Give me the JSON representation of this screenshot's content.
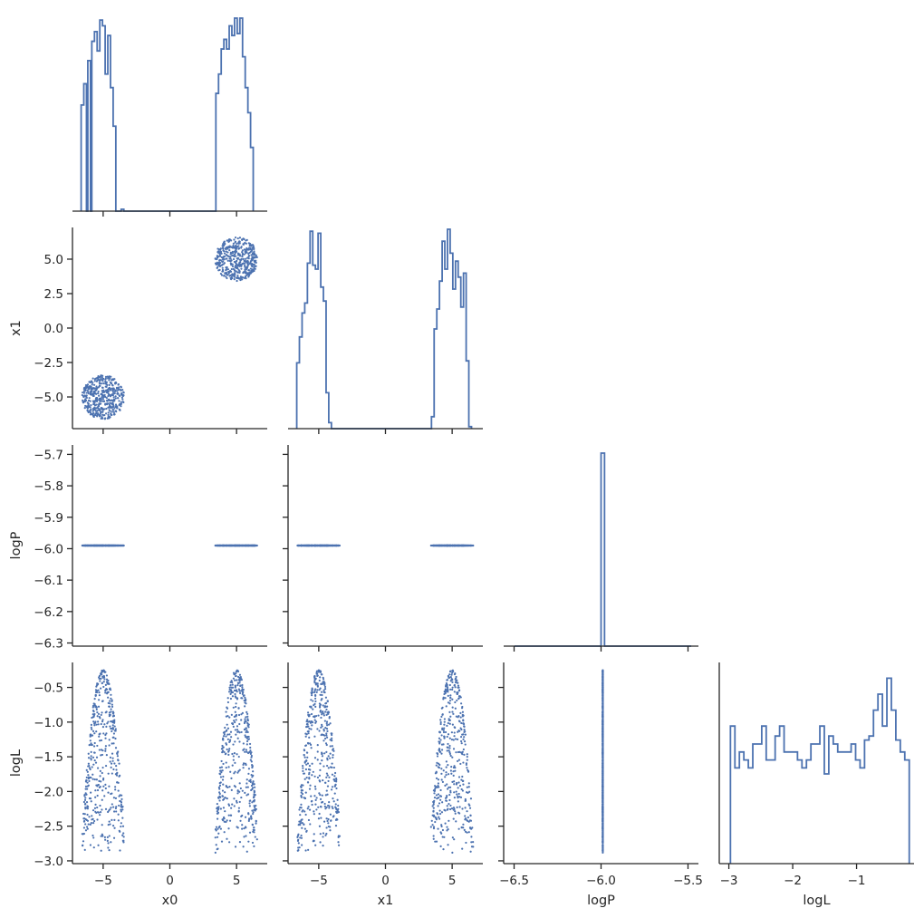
{
  "figure": {
    "type": "corner-plot",
    "color": "#4c72b0",
    "background": "#ffffff",
    "grid": false,
    "legend": false
  },
  "chart_data": {
    "type": "scatter",
    "variables": [
      "x0",
      "x1",
      "logP",
      "logL"
    ],
    "ranges": {
      "x0": [
        -7.3,
        7.3
      ],
      "x1": [
        -7.3,
        7.3
      ],
      "logP": [
        -6.31,
        -5.67
      ],
      "logL": [
        -3.04,
        -0.14
      ]
    },
    "ticks": {
      "x0": [
        -5,
        0,
        5
      ],
      "x1": [
        -5,
        0,
        5
      ],
      "x1_y": [
        -5.0,
        -2.5,
        0.0,
        2.5,
        5.0
      ],
      "logP_x": [
        -6.5,
        -6.0,
        -5.5
      ],
      "logP_y": [
        -6.3,
        -6.2,
        -6.1,
        -6.0,
        -5.9,
        -5.8,
        -5.7
      ],
      "logL_x": [
        -3,
        -2,
        -1
      ],
      "logL_y": [
        -3.0,
        -2.5,
        -2.0,
        -1.5,
        -1.0,
        -0.5
      ]
    },
    "tick_labels": {
      "x0": [
        "−5",
        "0",
        "5"
      ],
      "x1": [
        "−5",
        "0",
        "5"
      ],
      "x1_y": [
        "−5.0",
        "−2.5",
        "0.0",
        "2.5",
        "5.0"
      ],
      "logP_x": [
        "−6.5",
        "−6.0",
        "−5.5"
      ],
      "logP_y": [
        "−6.3",
        "−6.2",
        "−6.1",
        "−6.0",
        "−5.9",
        "−5.8",
        "−5.7"
      ],
      "logL_x": [
        "−3",
        "−2",
        "−1"
      ],
      "logL_y": [
        "−3.0",
        "−2.5",
        "−2.0",
        "−1.5",
        "−1.0",
        "−0.5"
      ]
    },
    "axis_labels": {
      "x0": "x0",
      "x1": "x1",
      "logP": "logP",
      "logL": "logL"
    },
    "histograms": {
      "x0": {
        "x_start": -6.6,
        "bin_width": 0.22,
        "counts": [
          30,
          35,
          35,
          42,
          50,
          48,
          52,
          52,
          40,
          50,
          45,
          30,
          0,
          0,
          0,
          0,
          0,
          0,
          0,
          0,
          0,
          0,
          0,
          0,
          0,
          0,
          0,
          0,
          0,
          0,
          0,
          0,
          0,
          0,
          0,
          0,
          0,
          0,
          0,
          0,
          0,
          0,
          0,
          0,
          0,
          0,
          0,
          0,
          0,
          0,
          0,
          0,
          0,
          0,
          0,
          0,
          0,
          0,
          0,
          0,
          0,
          0,
          0,
          0,
          0,
          0,
          0,
          0,
          0,
          0,
          0,
          0,
          0,
          0,
          0,
          0,
          0,
          0,
          0,
          0
        ]
      },
      "x0_bins": [
        {
          "x": -6.55,
          "h": 0.55
        },
        {
          "x": -6.35,
          "h": 0.66
        },
        {
          "x": -6.05,
          "h": 0.78
        },
        {
          "x": -5.75,
          "h": 0.88
        },
        {
          "x": -5.55,
          "h": 0.93
        },
        {
          "x": -5.35,
          "h": 0.83
        },
        {
          "x": -5.15,
          "h": 0.99
        },
        {
          "x": -4.95,
          "h": 0.96
        },
        {
          "x": -4.75,
          "h": 0.71
        },
        {
          "x": -4.55,
          "h": 0.91
        },
        {
          "x": -4.35,
          "h": 0.64
        },
        {
          "x": -4.15,
          "h": 0.44
        },
        {
          "x": -3.55,
          "h": 0.01
        },
        {
          "x": 3.55,
          "h": 0.61
        },
        {
          "x": 3.75,
          "h": 0.71
        },
        {
          "x": 3.95,
          "h": 0.84
        },
        {
          "x": 4.15,
          "h": 0.89
        },
        {
          "x": 4.35,
          "h": 0.84
        },
        {
          "x": 4.55,
          "h": 0.96
        },
        {
          "x": 4.75,
          "h": 0.91
        },
        {
          "x": 4.95,
          "h": 1.0
        },
        {
          "x": 5.15,
          "h": 0.92
        },
        {
          "x": 5.35,
          "h": 1.0
        },
        {
          "x": 5.55,
          "h": 0.8
        },
        {
          "x": 5.75,
          "h": 0.64
        },
        {
          "x": 5.95,
          "h": 0.51
        },
        {
          "x": 6.15,
          "h": 0.33
        }
      ],
      "x1_bins": [
        {
          "x": -6.55,
          "h": 0.33
        },
        {
          "x": -6.35,
          "h": 0.46
        },
        {
          "x": -6.15,
          "h": 0.58
        },
        {
          "x": -5.95,
          "h": 0.63
        },
        {
          "x": -5.75,
          "h": 0.83
        },
        {
          "x": -5.55,
          "h": 0.99
        },
        {
          "x": -5.35,
          "h": 0.82
        },
        {
          "x": -5.15,
          "h": 0.8
        },
        {
          "x": -4.95,
          "h": 0.98
        },
        {
          "x": -4.75,
          "h": 0.71
        },
        {
          "x": -4.55,
          "h": 0.64
        },
        {
          "x": -4.35,
          "h": 0.18
        },
        {
          "x": -4.15,
          "h": 0.03
        },
        {
          "x": 3.55,
          "h": 0.06
        },
        {
          "x": 3.75,
          "h": 0.5
        },
        {
          "x": 3.95,
          "h": 0.6
        },
        {
          "x": 4.15,
          "h": 0.74
        },
        {
          "x": 4.35,
          "h": 0.94
        },
        {
          "x": 4.55,
          "h": 0.8
        },
        {
          "x": 4.75,
          "h": 1.0
        },
        {
          "x": 4.95,
          "h": 0.88
        },
        {
          "x": 5.15,
          "h": 0.7
        },
        {
          "x": 5.35,
          "h": 0.84
        },
        {
          "x": 5.55,
          "h": 0.76
        },
        {
          "x": 5.75,
          "h": 0.61
        },
        {
          "x": 5.95,
          "h": 0.78
        },
        {
          "x": 6.15,
          "h": 0.34
        },
        {
          "x": 6.35,
          "h": 0.01
        }
      ],
      "logP": {
        "x_center": -5.99,
        "width": 0.02,
        "h": 1.0
      },
      "logL_bins": [
        {
          "x": -2.94,
          "h": 0.69
        },
        {
          "x": -2.87,
          "h": 0.48
        },
        {
          "x": -2.8,
          "h": 0.56
        },
        {
          "x": -2.73,
          "h": 0.52
        },
        {
          "x": -2.66,
          "h": 0.48
        },
        {
          "x": -2.59,
          "h": 0.6
        },
        {
          "x": -2.52,
          "h": 0.6
        },
        {
          "x": -2.45,
          "h": 0.69
        },
        {
          "x": -2.38,
          "h": 0.52
        },
        {
          "x": -2.31,
          "h": 0.52
        },
        {
          "x": -2.24,
          "h": 0.64
        },
        {
          "x": -2.17,
          "h": 0.69
        },
        {
          "x": -2.1,
          "h": 0.56
        },
        {
          "x": -2.03,
          "h": 0.56
        },
        {
          "x": -1.96,
          "h": 0.56
        },
        {
          "x": -1.89,
          "h": 0.52
        },
        {
          "x": -1.82,
          "h": 0.48
        },
        {
          "x": -1.75,
          "h": 0.52
        },
        {
          "x": -1.68,
          "h": 0.6
        },
        {
          "x": -1.61,
          "h": 0.6
        },
        {
          "x": -1.54,
          "h": 0.69
        },
        {
          "x": -1.47,
          "h": 0.45
        },
        {
          "x": -1.4,
          "h": 0.64
        },
        {
          "x": -1.33,
          "h": 0.6
        },
        {
          "x": -1.26,
          "h": 0.56
        },
        {
          "x": -1.19,
          "h": 0.56
        },
        {
          "x": -1.12,
          "h": 0.56
        },
        {
          "x": -1.05,
          "h": 0.6
        },
        {
          "x": -0.98,
          "h": 0.52
        },
        {
          "x": -0.91,
          "h": 0.48
        },
        {
          "x": -0.84,
          "h": 0.62
        },
        {
          "x": -0.77,
          "h": 0.64
        },
        {
          "x": -0.7,
          "h": 0.77
        },
        {
          "x": -0.63,
          "h": 0.85
        },
        {
          "x": -0.56,
          "h": 0.69
        },
        {
          "x": -0.49,
          "h": 0.93
        },
        {
          "x": -0.42,
          "h": 0.77
        },
        {
          "x": -0.35,
          "h": 0.62
        },
        {
          "x": -0.28,
          "h": 0.56
        },
        {
          "x": -0.21,
          "h": 0.52
        }
      ]
    },
    "scatter_clusters": {
      "centers": [
        [
          -5,
          -5
        ],
        [
          5,
          5
        ]
      ],
      "radius": 1.6,
      "points_per_cluster": 450,
      "logP_value": -5.99,
      "logL_range": [
        -2.95,
        -0.25
      ]
    }
  }
}
